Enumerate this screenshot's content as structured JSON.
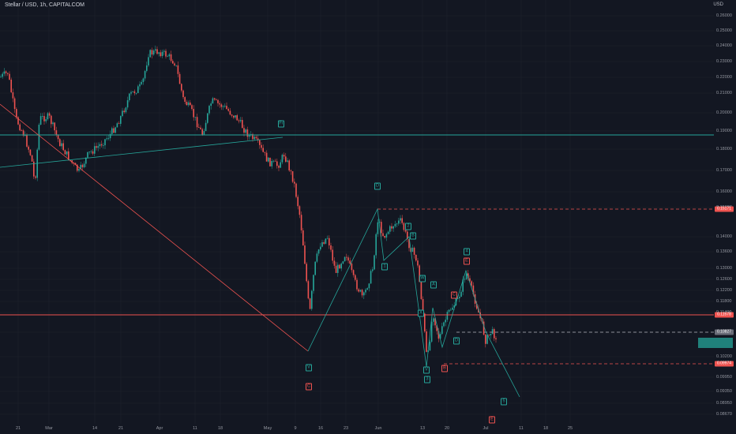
{
  "header": {
    "title": "Stellar / USD, 1h, CAPITALCOM",
    "currency": "USD"
  },
  "y_axis_labels": [
    "0.26000",
    "0.25000",
    "0.24000",
    "0.23000",
    "0.22000",
    "0.21000",
    "0.20000",
    "0.19000",
    "0.18000",
    "0.17000",
    "0.16000",
    "0.15000",
    "0.14000",
    "0.13600",
    "0.13000",
    "0.12600",
    "0.12200",
    "0.11800",
    "0.11400",
    "0.10650",
    "0.10200",
    "0.09950",
    "0.09350",
    "0.08950",
    "0.08670"
  ],
  "x_axis_labels": [
    "21",
    "Mar",
    "14",
    "21",
    "Apr",
    "11",
    "18",
    "May",
    "9",
    "16",
    "23",
    "Jun",
    "13",
    "20",
    "Jul",
    "11",
    "18",
    "25"
  ],
  "price_tags": [
    {
      "text": "0.15171",
      "color": "#ef5350"
    },
    {
      "text": "0.11578",
      "color": "#ef5350"
    },
    {
      "text": "0.10827",
      "color": "#6a6d78"
    },
    {
      "text": "0.09974",
      "color": "#ef5350"
    }
  ],
  "wave_labels": [
    {
      "text": "Fr",
      "color": "green"
    },
    {
      "text": "D",
      "color": "green"
    },
    {
      "text": "2",
      "color": "green"
    },
    {
      "text": "B",
      "color": "green"
    },
    {
      "text": "1",
      "color": "green"
    },
    {
      "text": "W",
      "color": "green"
    },
    {
      "text": "A",
      "color": "green"
    },
    {
      "text": "4",
      "color": "green"
    },
    {
      "text": "E",
      "color": "red"
    },
    {
      "text": "C",
      "color": "red"
    },
    {
      "text": "X",
      "color": "green"
    },
    {
      "text": "D",
      "color": "green"
    },
    {
      "text": "V",
      "color": "green"
    },
    {
      "text": "C",
      "color": "red"
    },
    {
      "text": "V",
      "color": "green"
    },
    {
      "text": "3",
      "color": "green"
    },
    {
      "text": "B",
      "color": "red"
    },
    {
      "text": "5",
      "color": "green"
    },
    {
      "text": "E",
      "color": "red"
    }
  ],
  "colors": {
    "background": "#131722",
    "up": "#26a69a",
    "down": "#ef5350",
    "grid": "#1e222d"
  }
}
